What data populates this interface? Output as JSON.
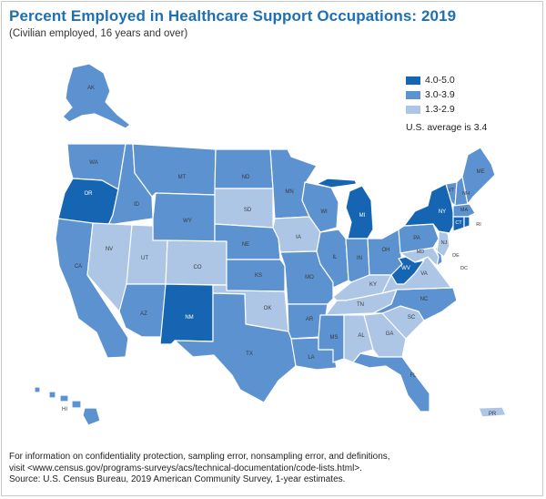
{
  "title": "Percent Employed in Healthcare Support Occupations: 2019",
  "subtitle": "(Civilian employed, 16 years and over)",
  "legend": {
    "items": [
      {
        "label": "4.0-5.0",
        "color": "#1565b3"
      },
      {
        "label": "3.0-3.9",
        "color": "#5b92cf"
      },
      {
        "label": "1.3-2.9",
        "color": "#aec6e6"
      }
    ],
    "note": "U.S. average is 3.4"
  },
  "map_data": {
    "classes": {
      "high": "4.0-5.0",
      "mid": "3.0-3.9",
      "low": "1.3-2.9"
    },
    "states": {
      "AK": "mid",
      "WA": "mid",
      "OR": "high",
      "CA": "mid",
      "ID": "mid",
      "NV": "low",
      "MT": "mid",
      "WY": "mid",
      "UT": "low",
      "AZ": "mid",
      "CO": "low",
      "NM": "high",
      "ND": "mid",
      "SD": "low",
      "NE": "mid",
      "KS": "mid",
      "OK": "low",
      "TX": "mid",
      "MN": "mid",
      "IA": "low",
      "MO": "mid",
      "AR": "mid",
      "LA": "mid",
      "WI": "mid",
      "IL": "mid",
      "MI": "high",
      "IN": "mid",
      "OH": "mid",
      "KY": "low",
      "TN": "low",
      "MS": "mid",
      "AL": "low",
      "GA": "low",
      "FL": "mid",
      "SC": "low",
      "NC": "mid",
      "VA": "low",
      "WV": "high",
      "PA": "mid",
      "NY": "high",
      "VT": "mid",
      "NH": "mid",
      "ME": "mid",
      "MA": "mid",
      "RI": "high",
      "CT": "high",
      "NJ": "low",
      "DE": "mid",
      "MD": "low",
      "DC": "low",
      "HI": "mid",
      "PR": "low"
    }
  },
  "footer": {
    "line1": "For information on confidentiality protection, sampling error, nonsampling error, and definitions,",
    "line2": "visit <www.census.gov/programs-surveys/acs/technical-documentation/code-lists.html>.",
    "source": "Source: U.S. Census Bureau, 2019 American Community Survey, 1-year estimates."
  }
}
